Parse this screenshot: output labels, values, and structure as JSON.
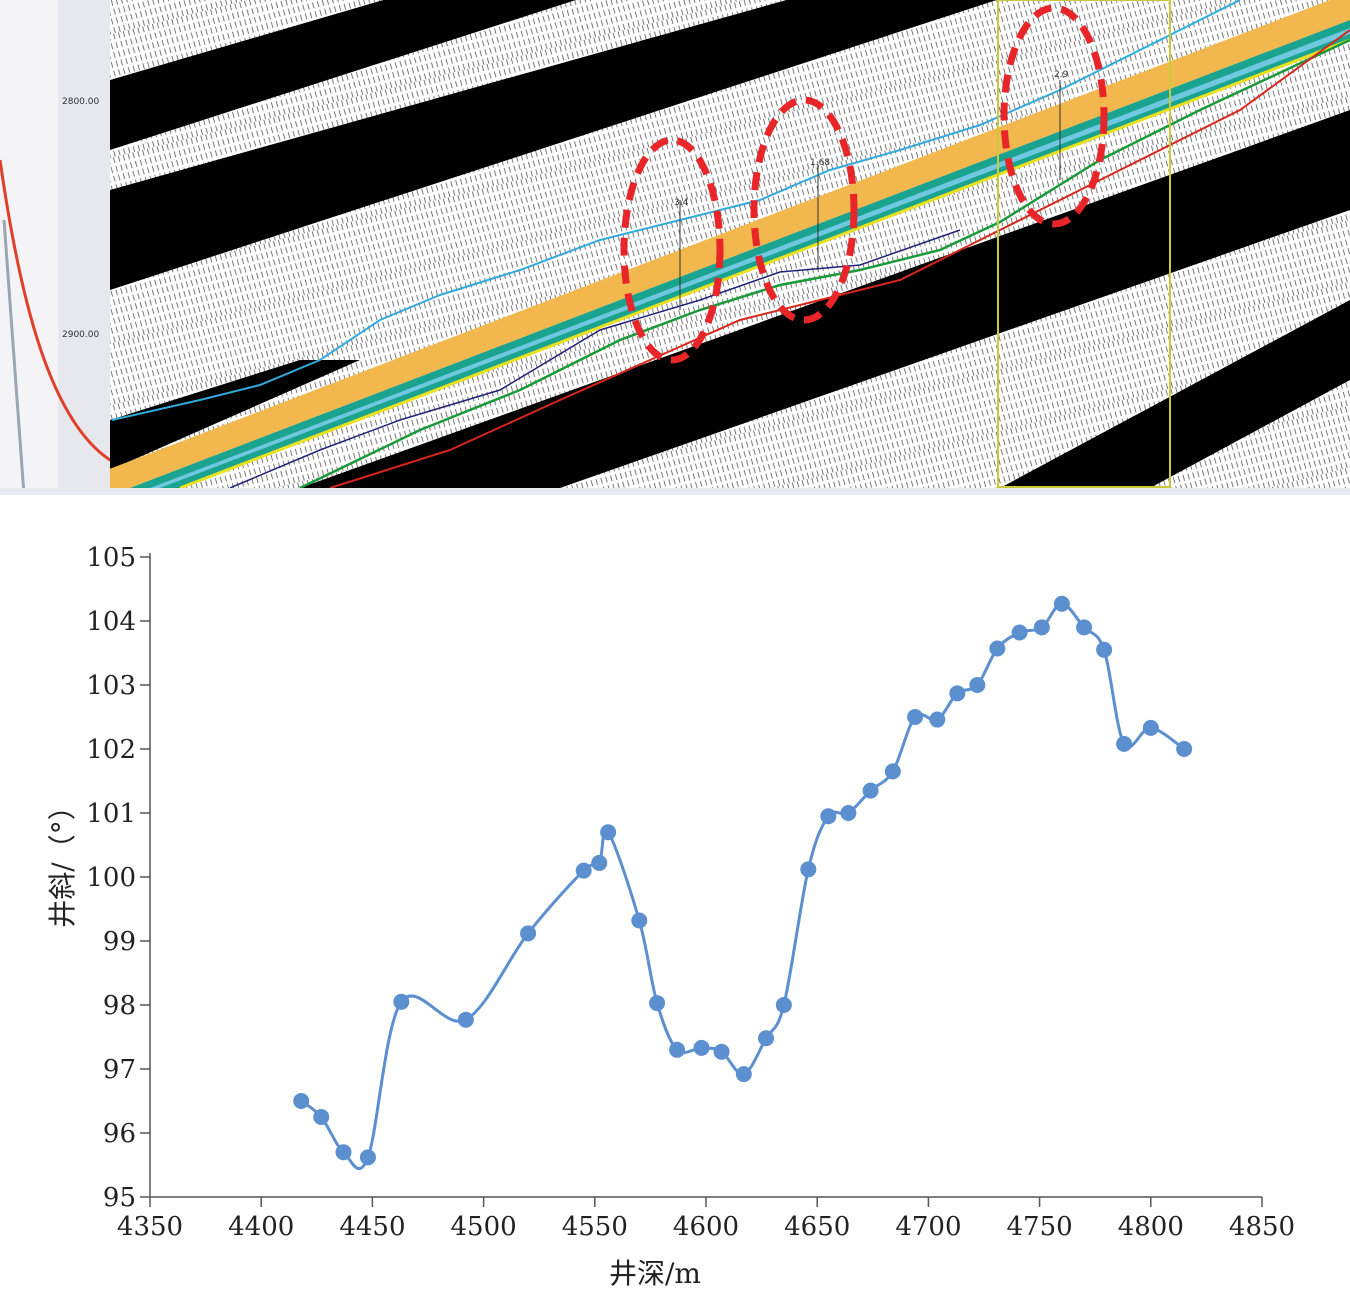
{
  "seismic_section": {
    "depth_labels": [
      "2800.00",
      "2900.00"
    ],
    "marker_labels": [
      "3.4",
      "1.68",
      "2.9"
    ],
    "colors": {
      "reservoir": "#f2b84e",
      "teal": "#1aa38f",
      "light_blue": "#33aadd",
      "red_track": "#d9261c",
      "green_track": "#1a9a3a",
      "highlight": "#e8262a",
      "window": "#c9c93a"
    }
  },
  "chart_data": {
    "type": "line",
    "xlabel": "井深/m",
    "ylabel": "井斜/（°）",
    "xlim": [
      4350,
      4850
    ],
    "ylim": [
      95,
      105
    ],
    "x_ticks": [
      4350,
      4400,
      4450,
      4500,
      4550,
      4600,
      4650,
      4700,
      4750,
      4800,
      4850
    ],
    "y_ticks": [
      95,
      96,
      97,
      98,
      99,
      100,
      101,
      102,
      103,
      104,
      105
    ],
    "series": [
      {
        "color": "#5b8fcf",
        "x": [
          4418,
          4427,
          4437,
          4448,
          4463,
          4492,
          4520,
          4545,
          4552,
          4556,
          4570,
          4578,
          4587,
          4598,
          4607,
          4617,
          4627,
          4635,
          4646,
          4655,
          4664,
          4674,
          4684,
          4694,
          4704,
          4713,
          4722,
          4731,
          4741,
          4751,
          4760,
          4770,
          4779,
          4788,
          4800,
          4815
        ],
        "y": [
          96.5,
          96.25,
          95.7,
          95.62,
          98.05,
          97.77,
          99.12,
          100.1,
          100.22,
          100.7,
          99.32,
          98.03,
          97.3,
          97.33,
          97.27,
          96.92,
          97.48,
          98.0,
          100.12,
          100.95,
          101.0,
          101.35,
          101.65,
          102.5,
          102.46,
          102.87,
          103.0,
          103.57,
          103.82,
          103.9,
          104.27,
          103.9,
          103.55,
          102.08,
          102.33,
          102.0
        ]
      }
    ]
  }
}
